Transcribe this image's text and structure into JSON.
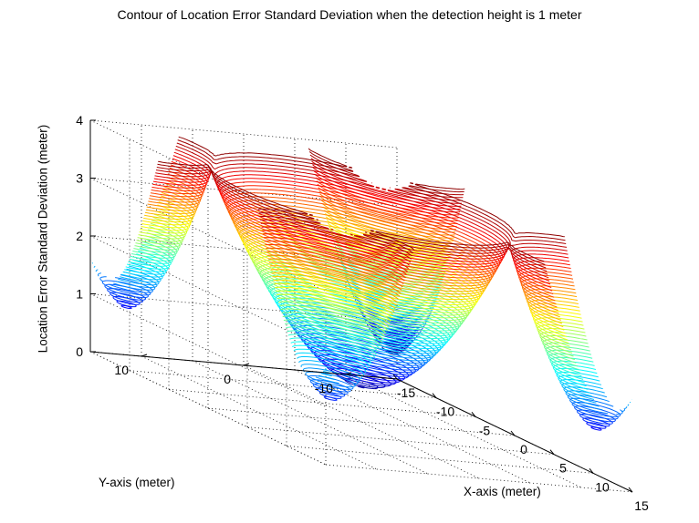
{
  "chart_data": {
    "type": "3d-contour",
    "title": "Contour of Location Error Standard Deviation when the detection height is 1 meter",
    "xlabel": "X-axis (meter)",
    "ylabel": "Y-axis (meter)",
    "zlabel": "Location Error Standard Deviation (meter)",
    "xlim": [
      -15,
      15
    ],
    "ylim": [
      -15,
      15
    ],
    "zlim": [
      0,
      4
    ],
    "xticks": [
      -15,
      -10,
      -5,
      0,
      5,
      10,
      15
    ],
    "yticks": [
      -10,
      0,
      10
    ],
    "zticks": [
      0,
      1,
      2,
      3,
      4
    ],
    "xtick_labels": [
      "-15",
      "-10",
      "-5",
      "0",
      "5",
      "10",
      "15"
    ],
    "ytick_labels": [
      "-10",
      "0",
      "10"
    ],
    "ztick_labels": [
      "0",
      "1",
      "2",
      "3",
      "4"
    ],
    "grid": true,
    "colormap": "jet",
    "surface": {
      "description": "bowl-shaped surface clipped near z = 4 with four deep minima near the corners",
      "center": [
        0,
        0
      ],
      "center_min_z": 0.6,
      "rim_z": 3.9,
      "corner_minima": [
        {
          "x": -13,
          "y": 13,
          "z": 0.9
        },
        {
          "x": 13,
          "y": 13,
          "z": 1.0
        },
        {
          "x": 13,
          "y": -13,
          "z": 0.9
        },
        {
          "x": -13,
          "y": -13,
          "z": 0.5
        }
      ]
    }
  }
}
